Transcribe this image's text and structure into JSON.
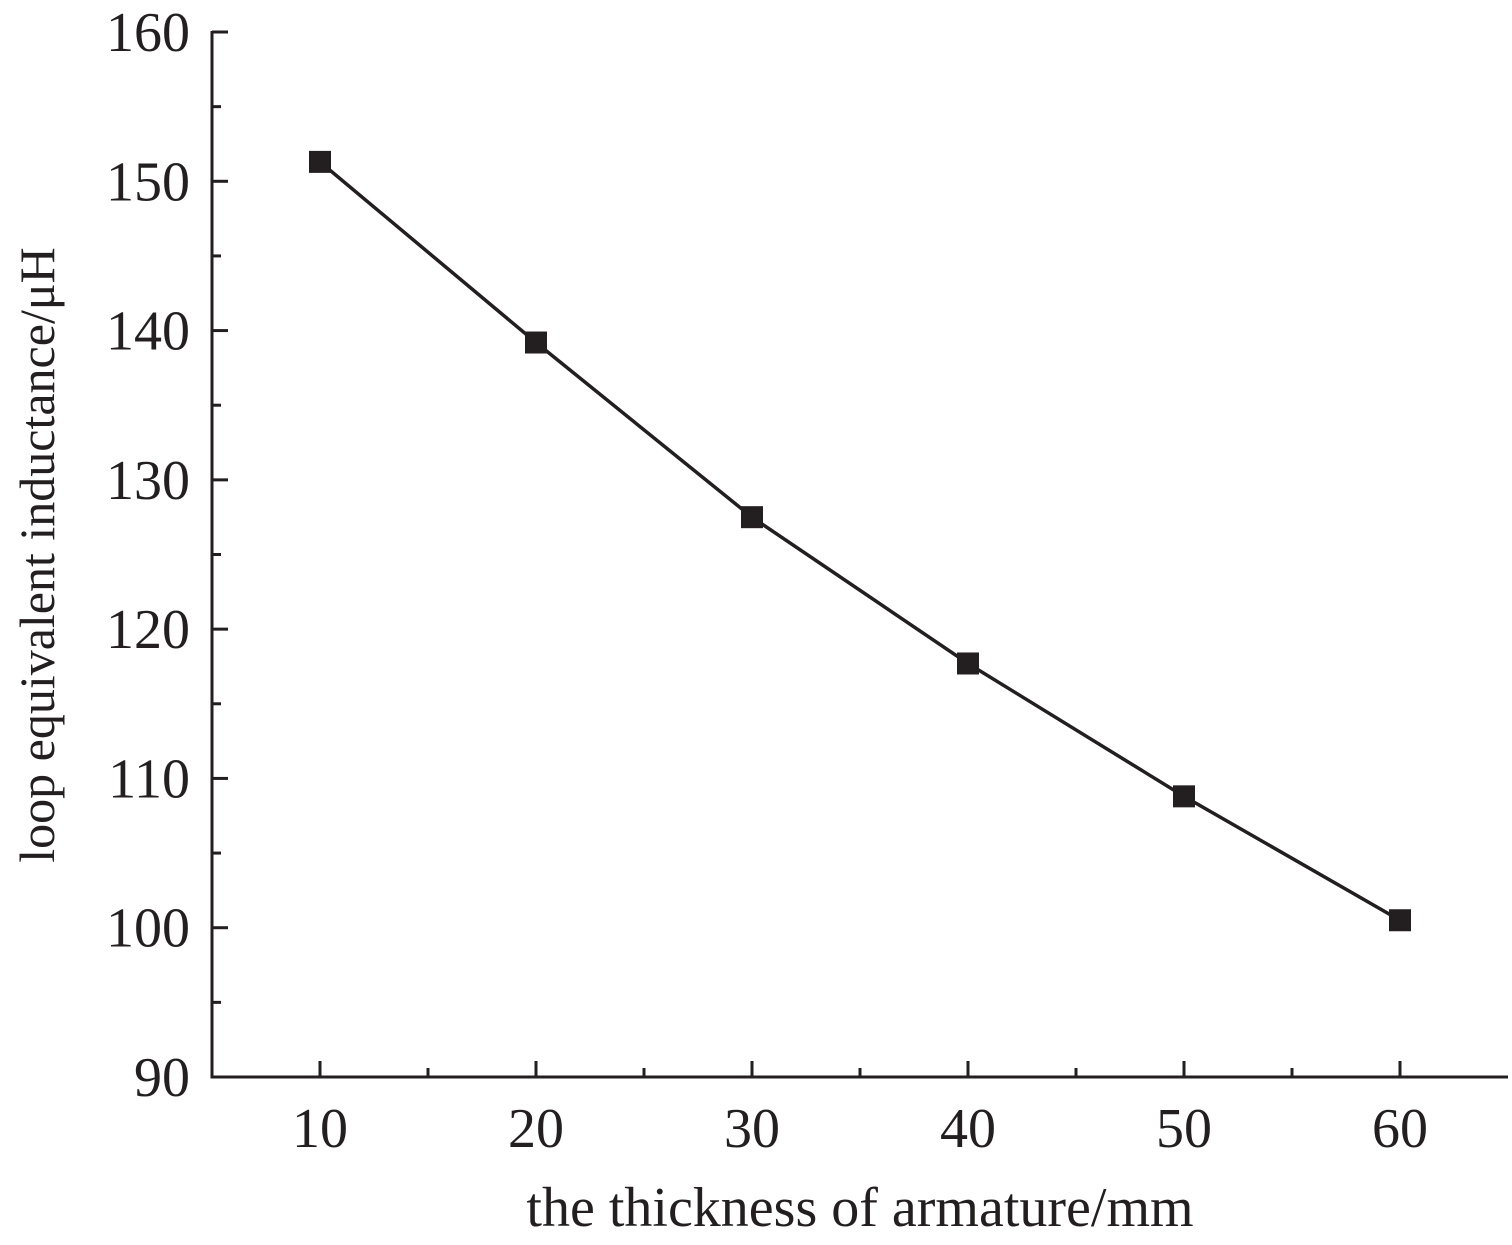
{
  "chart_data": {
    "type": "line",
    "title": "",
    "xlabel": "the thickness of armature/mm",
    "ylabel": "loop equivalent inductance/μH",
    "xlim": [
      5,
      65
    ],
    "ylim": [
      90,
      160
    ],
    "xticks": [
      10,
      20,
      30,
      40,
      50,
      60
    ],
    "yticks": [
      90,
      100,
      110,
      120,
      130,
      140,
      150,
      160
    ],
    "x_minor_ticks": [
      15,
      25,
      35,
      45,
      55
    ],
    "y_minor_ticks": [
      95,
      105,
      115,
      125,
      135,
      145,
      155
    ],
    "grid": false,
    "legend": "none",
    "marker": "square",
    "color": "#231f20",
    "series": [
      {
        "x": [
          10,
          20,
          30,
          40,
          50,
          60
        ],
        "y": [
          151.3,
          139.2,
          127.5,
          117.7,
          108.8,
          100.5
        ]
      }
    ]
  }
}
